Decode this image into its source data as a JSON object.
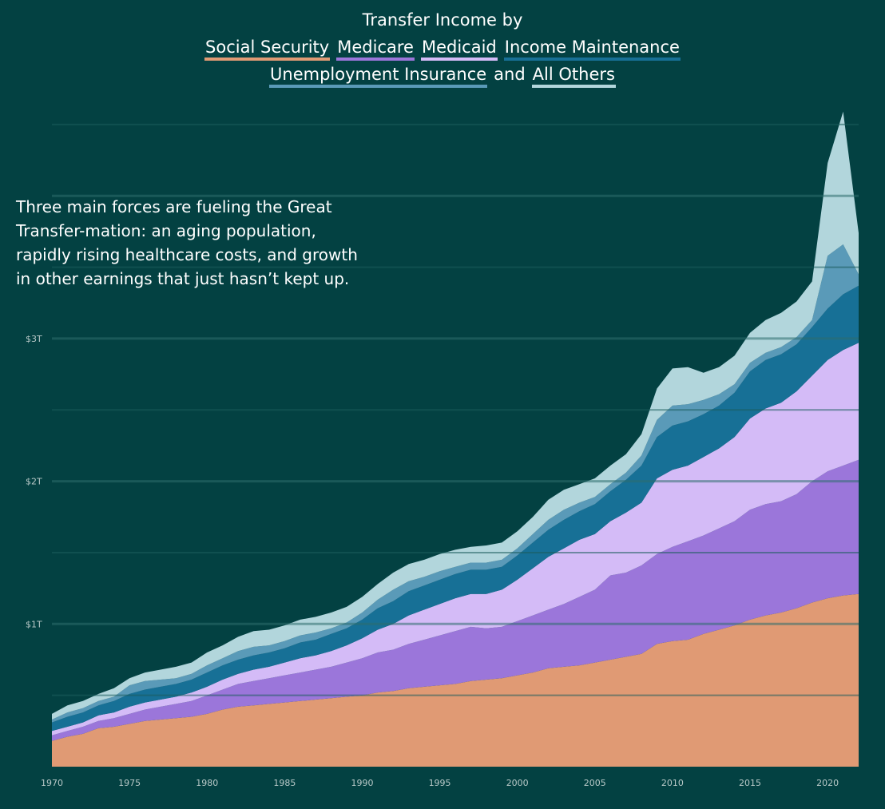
{
  "colors": {
    "background": "#034142",
    "social_security": "#e09a74",
    "medicare": "#9b76da",
    "medicaid": "#d4bbf7",
    "income_maintenance": "#177096",
    "unemployment_insurance": "#5a9ab8",
    "all_others": "#b2d6dc",
    "grid": "#0b5657"
  },
  "title": {
    "line1": "Transfer Income by",
    "legend_social_security": "Social Security",
    "legend_medicare": "Medicare",
    "legend_medicaid": "Medicaid",
    "legend_income_maintenance": "Income Maintenance",
    "legend_unemployment": "Unemployment Insurance",
    "joiner": "and",
    "legend_all_others": "All Others"
  },
  "annotation": "Three main forces are fueling the Great Transfer-mation: an aging population, rapidly rising healthcare costs, and growth in other earnings that just hasn’t kept up.",
  "chart_data": {
    "type": "area",
    "stacked": true,
    "title": "Transfer Income by Social Security Medicare Medicaid Income Maintenance Unemployment Insurance and All Others",
    "xlabel": "",
    "ylabel": "",
    "xlim": [
      1970,
      2022
    ],
    "ylim": [
      0,
      4.6
    ],
    "y_unit": "trillions of dollars",
    "x_ticks": [
      "1970",
      "1975",
      "1980",
      "1985",
      "1990",
      "1995",
      "2000",
      "2005",
      "2010",
      "2015",
      "2020"
    ],
    "y_ticks": [
      {
        "value": 1,
        "label": "$1T"
      },
      {
        "value": 2,
        "label": "$2T"
      },
      {
        "value": 3,
        "label": "$3T"
      }
    ],
    "grid": true,
    "legend": "title",
    "x": [
      1970,
      1971,
      1972,
      1973,
      1974,
      1975,
      1976,
      1977,
      1978,
      1979,
      1980,
      1981,
      1982,
      1983,
      1984,
      1985,
      1986,
      1987,
      1988,
      1989,
      1990,
      1991,
      1992,
      1993,
      1994,
      1995,
      1996,
      1997,
      1998,
      1999,
      2000,
      2001,
      2002,
      2003,
      2004,
      2005,
      2006,
      2007,
      2008,
      2009,
      2010,
      2011,
      2012,
      2013,
      2014,
      2015,
      2016,
      2017,
      2018,
      2019,
      2020,
      2021,
      2022
    ],
    "series": [
      {
        "name": "Social Security",
        "color_key": "social_security",
        "values": [
          0.18,
          0.21,
          0.23,
          0.27,
          0.28,
          0.3,
          0.32,
          0.33,
          0.34,
          0.35,
          0.37,
          0.4,
          0.42,
          0.43,
          0.44,
          0.45,
          0.46,
          0.47,
          0.48,
          0.49,
          0.5,
          0.52,
          0.53,
          0.55,
          0.56,
          0.57,
          0.58,
          0.6,
          0.61,
          0.62,
          0.64,
          0.66,
          0.69,
          0.7,
          0.71,
          0.73,
          0.75,
          0.77,
          0.79,
          0.86,
          0.88,
          0.89,
          0.93,
          0.96,
          0.99,
          1.03,
          1.06,
          1.08,
          1.11,
          1.15,
          1.18,
          1.2,
          1.21
        ]
      },
      {
        "name": "Medicare",
        "color_key": "medicare",
        "values": [
          0.04,
          0.04,
          0.05,
          0.05,
          0.06,
          0.07,
          0.08,
          0.09,
          0.1,
          0.11,
          0.13,
          0.14,
          0.16,
          0.17,
          0.18,
          0.19,
          0.2,
          0.21,
          0.22,
          0.24,
          0.26,
          0.28,
          0.29,
          0.31,
          0.33,
          0.35,
          0.37,
          0.38,
          0.36,
          0.36,
          0.38,
          0.4,
          0.41,
          0.44,
          0.48,
          0.51,
          0.59,
          0.59,
          0.62,
          0.63,
          0.66,
          0.69,
          0.69,
          0.71,
          0.73,
          0.77,
          0.78,
          0.78,
          0.8,
          0.85,
          0.89,
          0.91,
          0.94
        ]
      },
      {
        "name": "Medicaid",
        "color_key": "medicaid",
        "values": [
          0.03,
          0.03,
          0.03,
          0.04,
          0.04,
          0.05,
          0.05,
          0.05,
          0.05,
          0.06,
          0.06,
          0.07,
          0.07,
          0.08,
          0.08,
          0.09,
          0.1,
          0.1,
          0.11,
          0.12,
          0.14,
          0.16,
          0.18,
          0.2,
          0.21,
          0.22,
          0.23,
          0.23,
          0.24,
          0.26,
          0.29,
          0.33,
          0.37,
          0.39,
          0.4,
          0.39,
          0.38,
          0.42,
          0.44,
          0.53,
          0.54,
          0.53,
          0.55,
          0.56,
          0.59,
          0.64,
          0.67,
          0.69,
          0.72,
          0.74,
          0.78,
          0.81,
          0.82
        ]
      },
      {
        "name": "Income Maintenance",
        "color_key": "income_maintenance",
        "values": [
          0.06,
          0.07,
          0.07,
          0.07,
          0.08,
          0.09,
          0.09,
          0.09,
          0.09,
          0.09,
          0.1,
          0.1,
          0.1,
          0.1,
          0.1,
          0.1,
          0.11,
          0.11,
          0.12,
          0.12,
          0.13,
          0.15,
          0.16,
          0.17,
          0.17,
          0.17,
          0.17,
          0.17,
          0.17,
          0.16,
          0.17,
          0.18,
          0.19,
          0.2,
          0.2,
          0.21,
          0.21,
          0.23,
          0.26,
          0.29,
          0.31,
          0.31,
          0.3,
          0.3,
          0.31,
          0.33,
          0.34,
          0.34,
          0.33,
          0.34,
          0.36,
          0.39,
          0.4
        ]
      },
      {
        "name": "Unemployment Insurance",
        "color_key": "unemployment_insurance",
        "values": [
          0.02,
          0.03,
          0.03,
          0.03,
          0.03,
          0.06,
          0.06,
          0.05,
          0.04,
          0.04,
          0.05,
          0.05,
          0.06,
          0.06,
          0.05,
          0.05,
          0.05,
          0.05,
          0.04,
          0.04,
          0.05,
          0.06,
          0.08,
          0.07,
          0.06,
          0.06,
          0.05,
          0.05,
          0.05,
          0.05,
          0.05,
          0.06,
          0.07,
          0.07,
          0.06,
          0.05,
          0.05,
          0.05,
          0.07,
          0.12,
          0.14,
          0.12,
          0.1,
          0.08,
          0.06,
          0.06,
          0.05,
          0.05,
          0.05,
          0.05,
          0.37,
          0.35,
          0.08
        ]
      },
      {
        "name": "All Others",
        "color_key": "all_others",
        "values": [
          0.04,
          0.05,
          0.05,
          0.05,
          0.06,
          0.05,
          0.06,
          0.07,
          0.08,
          0.08,
          0.09,
          0.09,
          0.1,
          0.11,
          0.11,
          0.11,
          0.11,
          0.11,
          0.11,
          0.11,
          0.11,
          0.11,
          0.12,
          0.12,
          0.12,
          0.12,
          0.12,
          0.11,
          0.12,
          0.12,
          0.12,
          0.12,
          0.14,
          0.14,
          0.13,
          0.13,
          0.13,
          0.13,
          0.15,
          0.22,
          0.26,
          0.26,
          0.19,
          0.19,
          0.2,
          0.21,
          0.23,
          0.24,
          0.25,
          0.27,
          0.65,
          0.93,
          0.29
        ]
      }
    ]
  }
}
